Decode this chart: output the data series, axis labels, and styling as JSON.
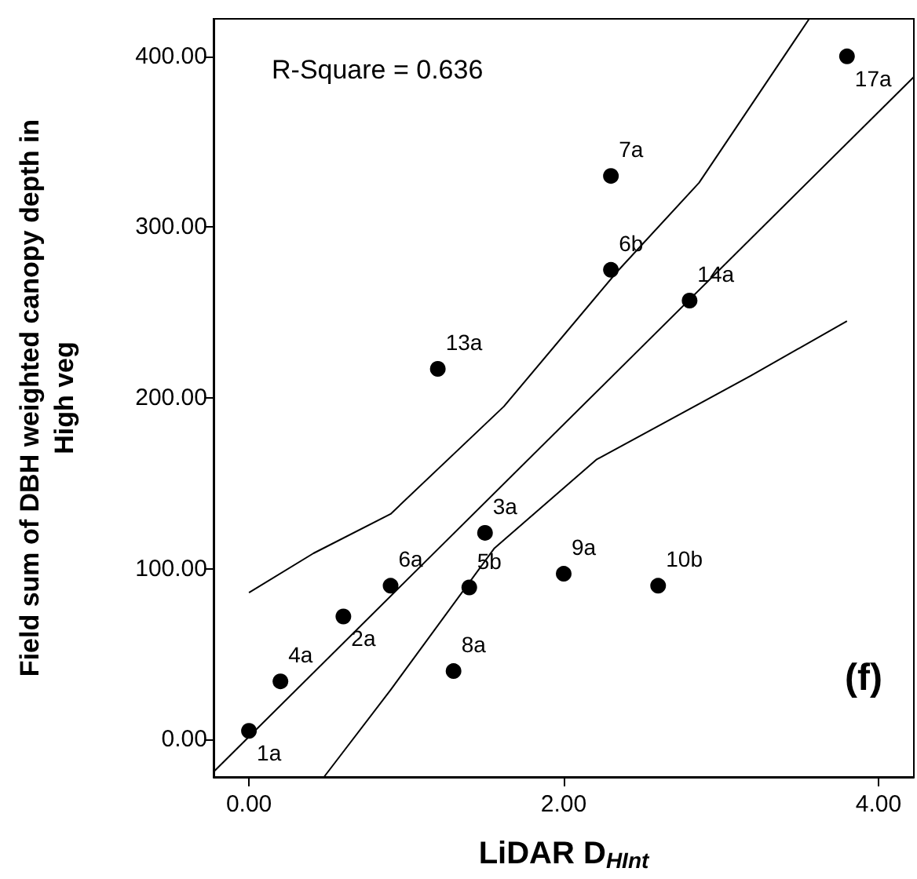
{
  "chart_data": {
    "type": "scatter",
    "xlabel": "LiDAR D$_{HInt}$",
    "ylabel": "Field sum of DBH weighted canopy depth in\nHigh veg",
    "annotations": [
      "R-Square = 0.636",
      "(f)",
      {
        "text": "1a",
        "x": 0,
        "y": 5
      },
      {
        "text": "4a",
        "x": 0.2,
        "y": 34
      },
      {
        "text": "2a",
        "x": 0.6,
        "y": 72
      },
      {
        "text": "6a",
        "x": 0.9,
        "y": 90
      },
      {
        "text": "8a",
        "x": 1.3,
        "y": 40
      },
      {
        "text": "5b",
        "x": 1.4,
        "y": 89
      },
      {
        "text": "3a",
        "x": 1.5,
        "y": 121
      },
      {
        "text": "9a",
        "x": 2.0,
        "y": 97
      },
      {
        "text": "10b",
        "x": 2.6,
        "y": 90
      },
      {
        "text": "13a",
        "x": 1.2,
        "y": 217
      },
      {
        "text": "6b",
        "x": 2.3,
        "y": 275
      },
      {
        "text": "7a",
        "x": 2.3,
        "y": 330
      },
      {
        "text": "14a",
        "x": 2.8,
        "y": 257
      },
      {
        "text": "17a",
        "x": 3.8,
        "y": 400
      }
    ],
    "xlim": [
      -0.225,
      4.225
    ],
    "ylim": [
      -22,
      422
    ],
    "xticks": [
      {
        "value": 0,
        "label": "0.00"
      },
      {
        "value": 2,
        "label": "2.00"
      },
      {
        "value": 4,
        "label": "4.00"
      }
    ],
    "yticks": [
      {
        "value": 0,
        "label": "0.00"
      },
      {
        "value": 100,
        "label": "100.00"
      },
      {
        "value": 200,
        "label": "200.00"
      },
      {
        "value": 300,
        "label": "300.00"
      },
      {
        "value": 400,
        "label": "400.00"
      }
    ],
    "series": [
      {
        "color": "#000000",
        "marker": "circle",
        "x": [
          0,
          0.2,
          0.6,
          0.9,
          1.3,
          1.4,
          1.5,
          2.0,
          2.6,
          1.2,
          2.3,
          2.3,
          2.8,
          3.8
        ],
        "values": [
          5,
          34,
          72,
          90,
          40,
          89,
          121,
          97,
          90,
          217,
          275,
          330,
          257,
          400
        ]
      },
      {
        "type": "line",
        "color": "#000000",
        "marker": "none",
        "line_style": "solid",
        "x": [
          -0.225,
          4.225
        ],
        "values": [
          -19,
          388
        ]
      },
      {
        "type": "line",
        "color": "#000000",
        "marker": "none",
        "line_style": "solid",
        "x": [
          0,
          0.41,
          0.9,
          1.62,
          2.34,
          2.86,
          3.56
        ],
        "values": [
          86,
          109,
          132,
          195,
          274,
          326,
          422
        ]
      },
      {
        "type": "line",
        "color": "#000000",
        "marker": "none",
        "line_style": "solid",
        "x": [
          0.477,
          0.9,
          1.56,
          2.21,
          3.19,
          3.8
        ],
        "values": [
          -22,
          29,
          112,
          164,
          213,
          245
        ]
      }
    ]
  }
}
